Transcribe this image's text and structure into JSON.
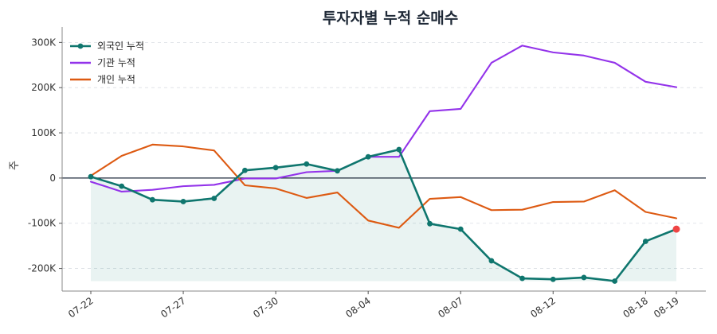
{
  "chart_data": {
    "type": "line",
    "title": "투자자별 누적 순매수",
    "ylabel": "주",
    "xlabel": "",
    "x": [
      "07-22",
      "07-23",
      "07-24",
      "07-27",
      "07-28",
      "07-29",
      "07-30",
      "07-31",
      "08-03",
      "08-04",
      "08-05",
      "08-06",
      "08-07",
      "08-10",
      "08-11",
      "08-12",
      "08-13",
      "08-14",
      "08-18",
      "08-19"
    ],
    "xtick_labels": [
      "07-22",
      "07-27",
      "07-30",
      "08-04",
      "08-07",
      "08-12",
      "08-18",
      "08-19"
    ],
    "ylim": [
      -250000,
      320000
    ],
    "yticks": [
      -200000,
      -100000,
      0,
      100000,
      200000,
      300000
    ],
    "ytick_labels": [
      "-200K",
      "-100K",
      "0",
      "100K",
      "200K",
      "300K"
    ],
    "grid": true,
    "legend_position": "top-left",
    "series": [
      {
        "name": "외국인 누적",
        "color": "#0f766e",
        "marker": true,
        "fill": true,
        "values": [
          3000,
          -18000,
          -48000,
          -52000,
          -45000,
          17000,
          23000,
          31000,
          16000,
          47000,
          63000,
          -101000,
          -113000,
          -183000,
          -222000,
          -224000,
          -220000,
          -228000,
          -140000,
          -113000
        ]
      },
      {
        "name": "기관 누적",
        "color": "#9333ea",
        "marker": false,
        "fill": false,
        "values": [
          -8000,
          -30000,
          -26000,
          -18000,
          -15000,
          -1000,
          -1000,
          13000,
          16000,
          47000,
          47000,
          148000,
          153000,
          255000,
          293000,
          278000,
          271000,
          255000,
          213000,
          201000
        ]
      },
      {
        "name": "개인 누적",
        "color": "#dd5a12",
        "marker": false,
        "fill": false,
        "values": [
          5000,
          49000,
          74000,
          70000,
          61000,
          -16000,
          -23000,
          -44000,
          -32000,
          -94000,
          -110000,
          -46000,
          -42000,
          -71000,
          -70000,
          -53000,
          -52000,
          -27000,
          -75000,
          -89000
        ]
      }
    ],
    "last_point_highlight_color": "#ef4444"
  }
}
